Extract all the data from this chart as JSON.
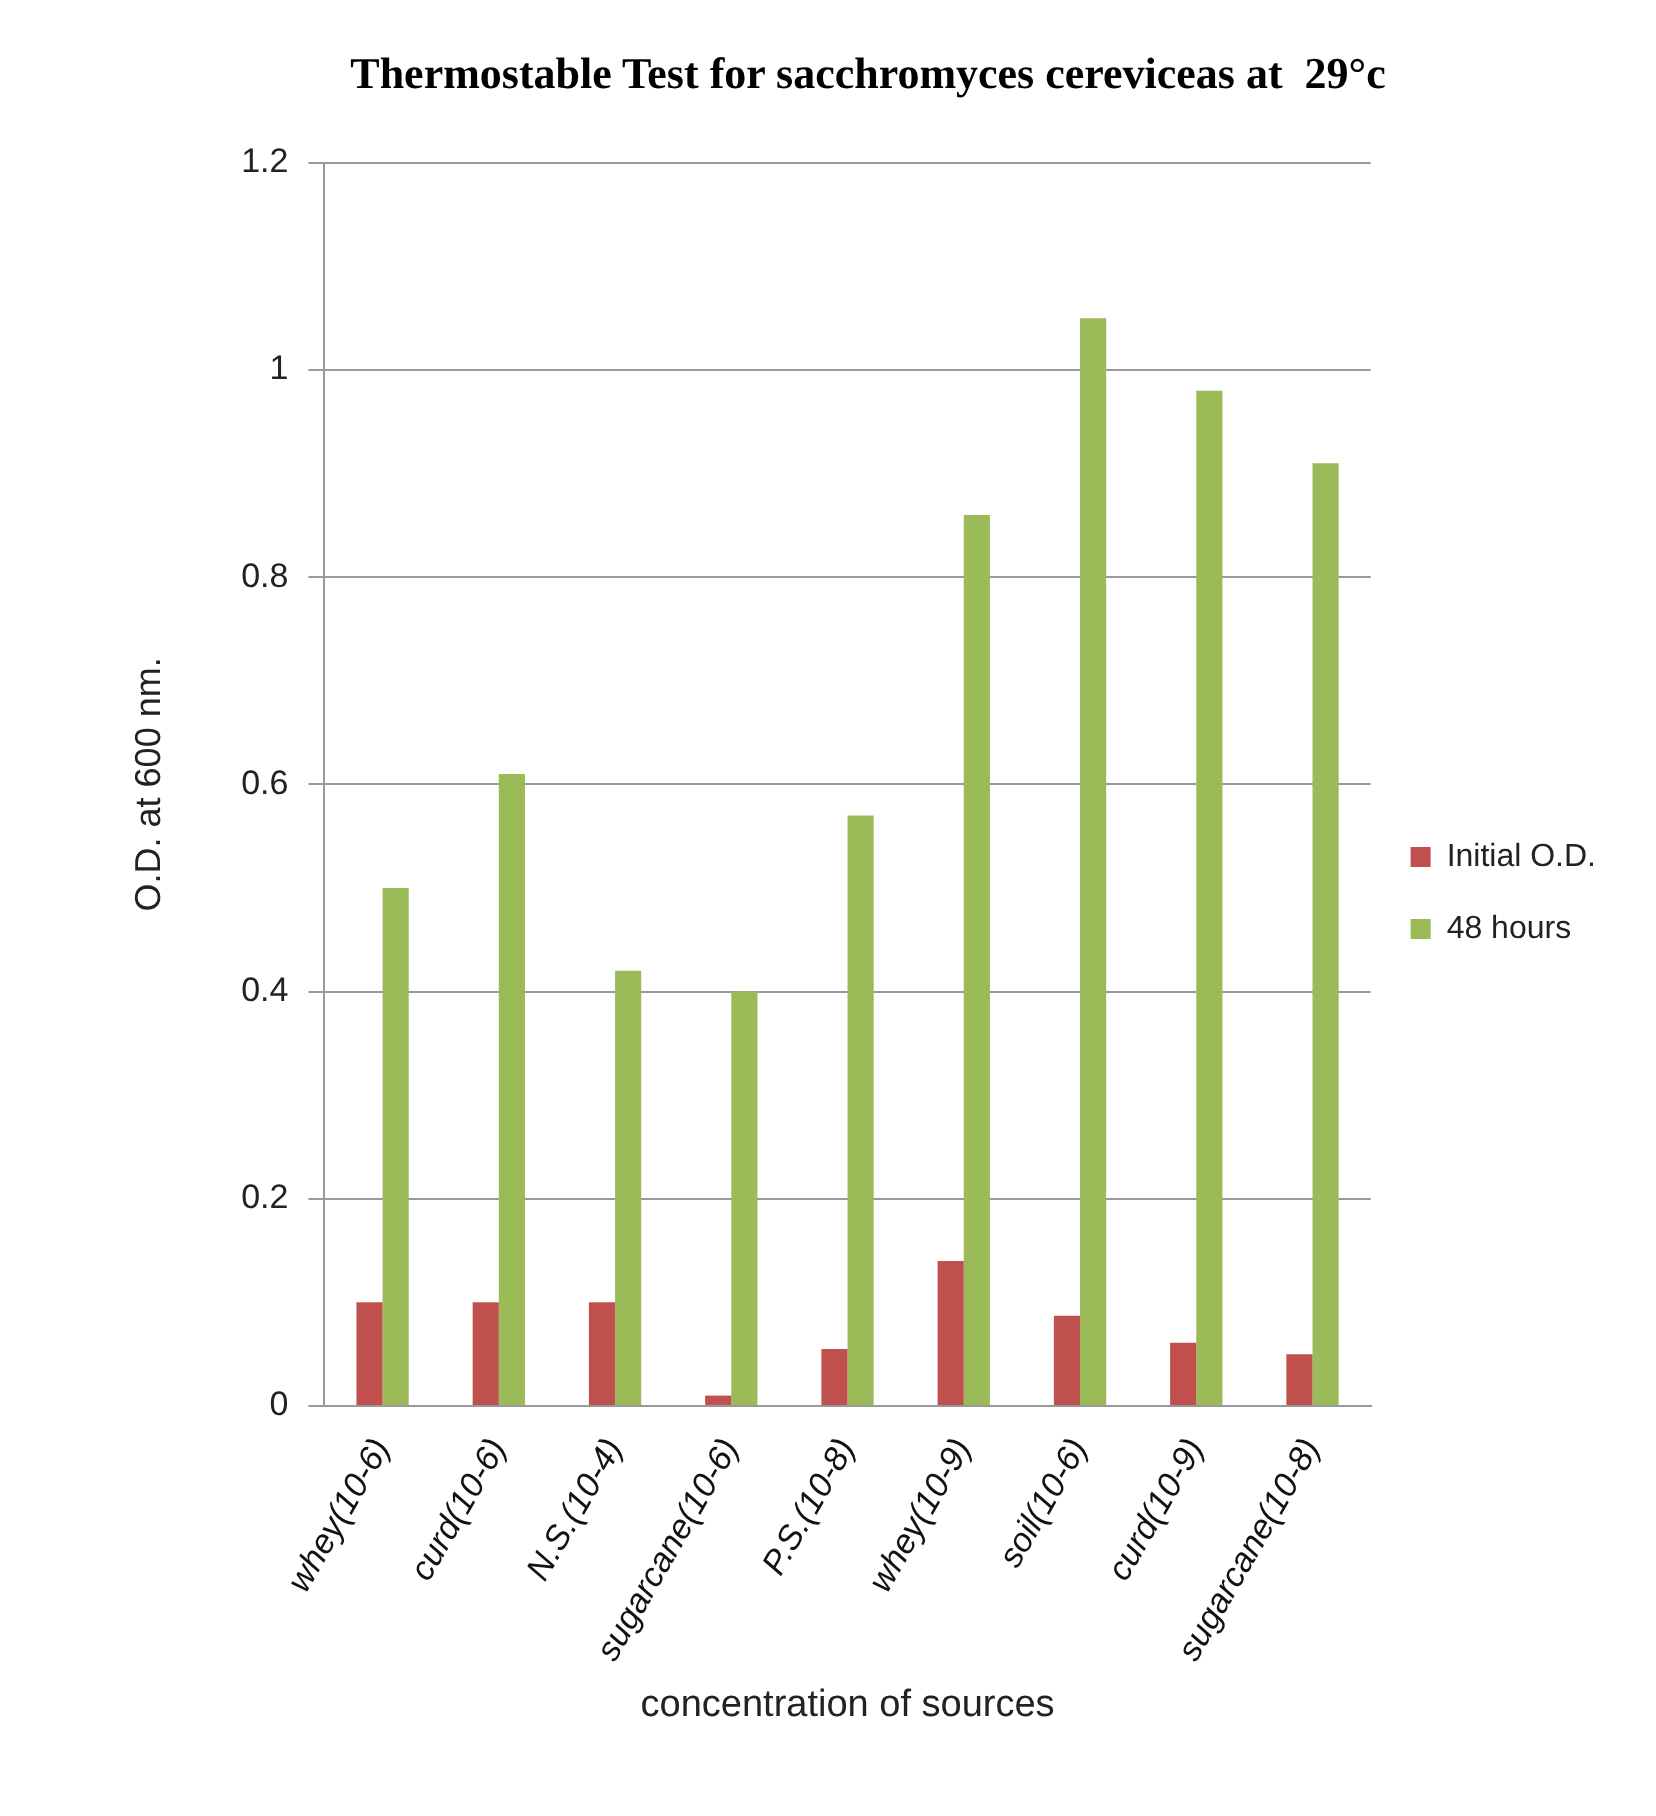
{
  "chart_data": {
    "type": "bar",
    "title": "Thermostable Test for sacchromyces cereviceas at  29°c",
    "xlabel": "concentration of sources",
    "ylabel": "O.D. at 600 nm.",
    "categories": [
      "whey(10-6)",
      "curd(10-6)",
      "N.S.(10-4)",
      "sugarcane(10-6)",
      "P.S.(10-8)",
      "whey(10-9)",
      "soil(10-6)",
      "curd(10-9)",
      "sugarcane(10-8)"
    ],
    "series": [
      {
        "name": "Initial O.D.",
        "color": "#c0504d",
        "values": [
          0.1,
          0.1,
          0.1,
          0.01,
          0.055,
          0.14,
          0.087,
          0.061,
          0.05
        ]
      },
      {
        "name": "48 hours",
        "color": "#9bbb59",
        "values": [
          0.5,
          0.61,
          0.42,
          0.4,
          0.57,
          0.86,
          1.05,
          0.98,
          0.91
        ]
      }
    ],
    "ylim": [
      0,
      1.2
    ],
    "yticks": [
      0,
      0.2,
      0.4,
      0.6,
      0.8,
      1,
      1.2
    ],
    "grid": "y",
    "legend": "right"
  }
}
